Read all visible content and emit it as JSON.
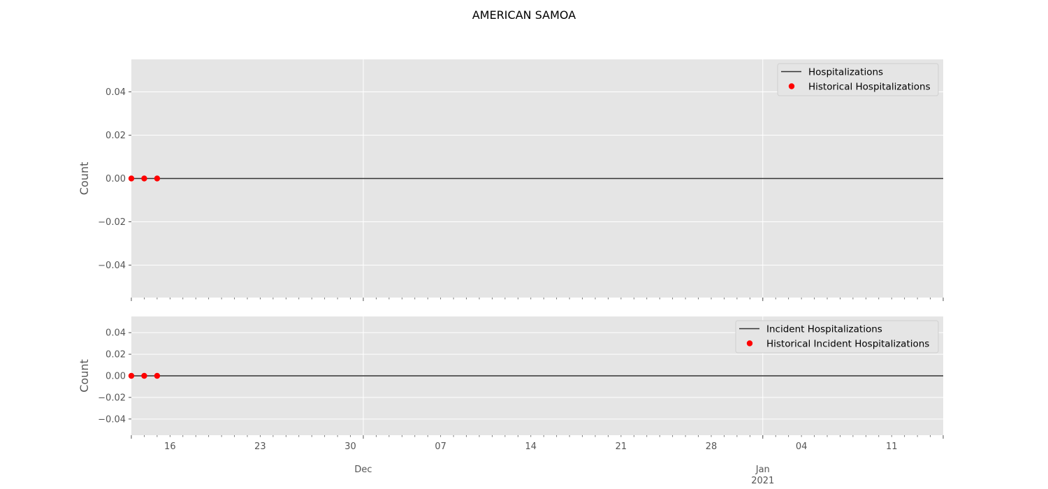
{
  "figure": {
    "title": "AMERICAN SAMOA"
  },
  "chart_data": [
    {
      "type": "line",
      "title": "",
      "ylabel": "Count",
      "xlabel": "",
      "xlim": [
        "2020-11-13",
        "2021-01-15"
      ],
      "ylim": [
        -0.055,
        0.055
      ],
      "yticks": [
        -0.04,
        -0.02,
        0.0,
        0.02,
        0.04
      ],
      "ytick_labels": [
        "−0.04",
        "−0.02",
        "0.00",
        "0.02",
        "0.04"
      ],
      "grid": true,
      "legend_position": "top-right",
      "series": [
        {
          "name": "Hospitalizations",
          "kind": "line",
          "color": "#333333",
          "x": [
            "2020-11-13",
            "2021-01-15"
          ],
          "y": [
            0,
            0
          ]
        },
        {
          "name": "Historical Hospitalizations",
          "kind": "scatter",
          "color": "#ff0000",
          "x": [
            "2020-11-13",
            "2020-11-14",
            "2020-11-15"
          ],
          "y": [
            0,
            0,
            0
          ]
        }
      ]
    },
    {
      "type": "line",
      "title": "",
      "ylabel": "Count",
      "xlabel": "",
      "xlim": [
        "2020-11-13",
        "2021-01-15"
      ],
      "ylim": [
        -0.055,
        0.055
      ],
      "yticks": [
        -0.04,
        -0.02,
        0.0,
        0.02,
        0.04
      ],
      "ytick_labels": [
        "−0.04",
        "−0.02",
        "0.00",
        "0.02",
        "0.04"
      ],
      "grid": true,
      "legend_position": "top-right",
      "series": [
        {
          "name": "Incident Hospitalizations",
          "kind": "line",
          "color": "#333333",
          "x": [
            "2020-11-13",
            "2021-01-15"
          ],
          "y": [
            0,
            0
          ]
        },
        {
          "name": "Historical Incident Hospitalizations",
          "kind": "scatter",
          "color": "#ff0000",
          "x": [
            "2020-11-13",
            "2020-11-14",
            "2020-11-15"
          ],
          "y": [
            0,
            0,
            0
          ]
        }
      ]
    }
  ],
  "x_axis": {
    "minor_ticks": [
      {
        "date": "2020-11-16",
        "label": "16"
      },
      {
        "date": "2020-11-23",
        "label": "23"
      },
      {
        "date": "2020-11-30",
        "label": "30"
      },
      {
        "date": "2020-12-07",
        "label": "07"
      },
      {
        "date": "2020-12-14",
        "label": "14"
      },
      {
        "date": "2020-12-21",
        "label": "21"
      },
      {
        "date": "2020-12-28",
        "label": "28"
      },
      {
        "date": "2021-01-04",
        "label": "04"
      },
      {
        "date": "2021-01-11",
        "label": "11"
      }
    ],
    "major_ticks": [
      {
        "date": "2020-12-01",
        "label": "Dec"
      },
      {
        "date": "2021-01-01",
        "label": "Jan\n2021"
      }
    ]
  }
}
